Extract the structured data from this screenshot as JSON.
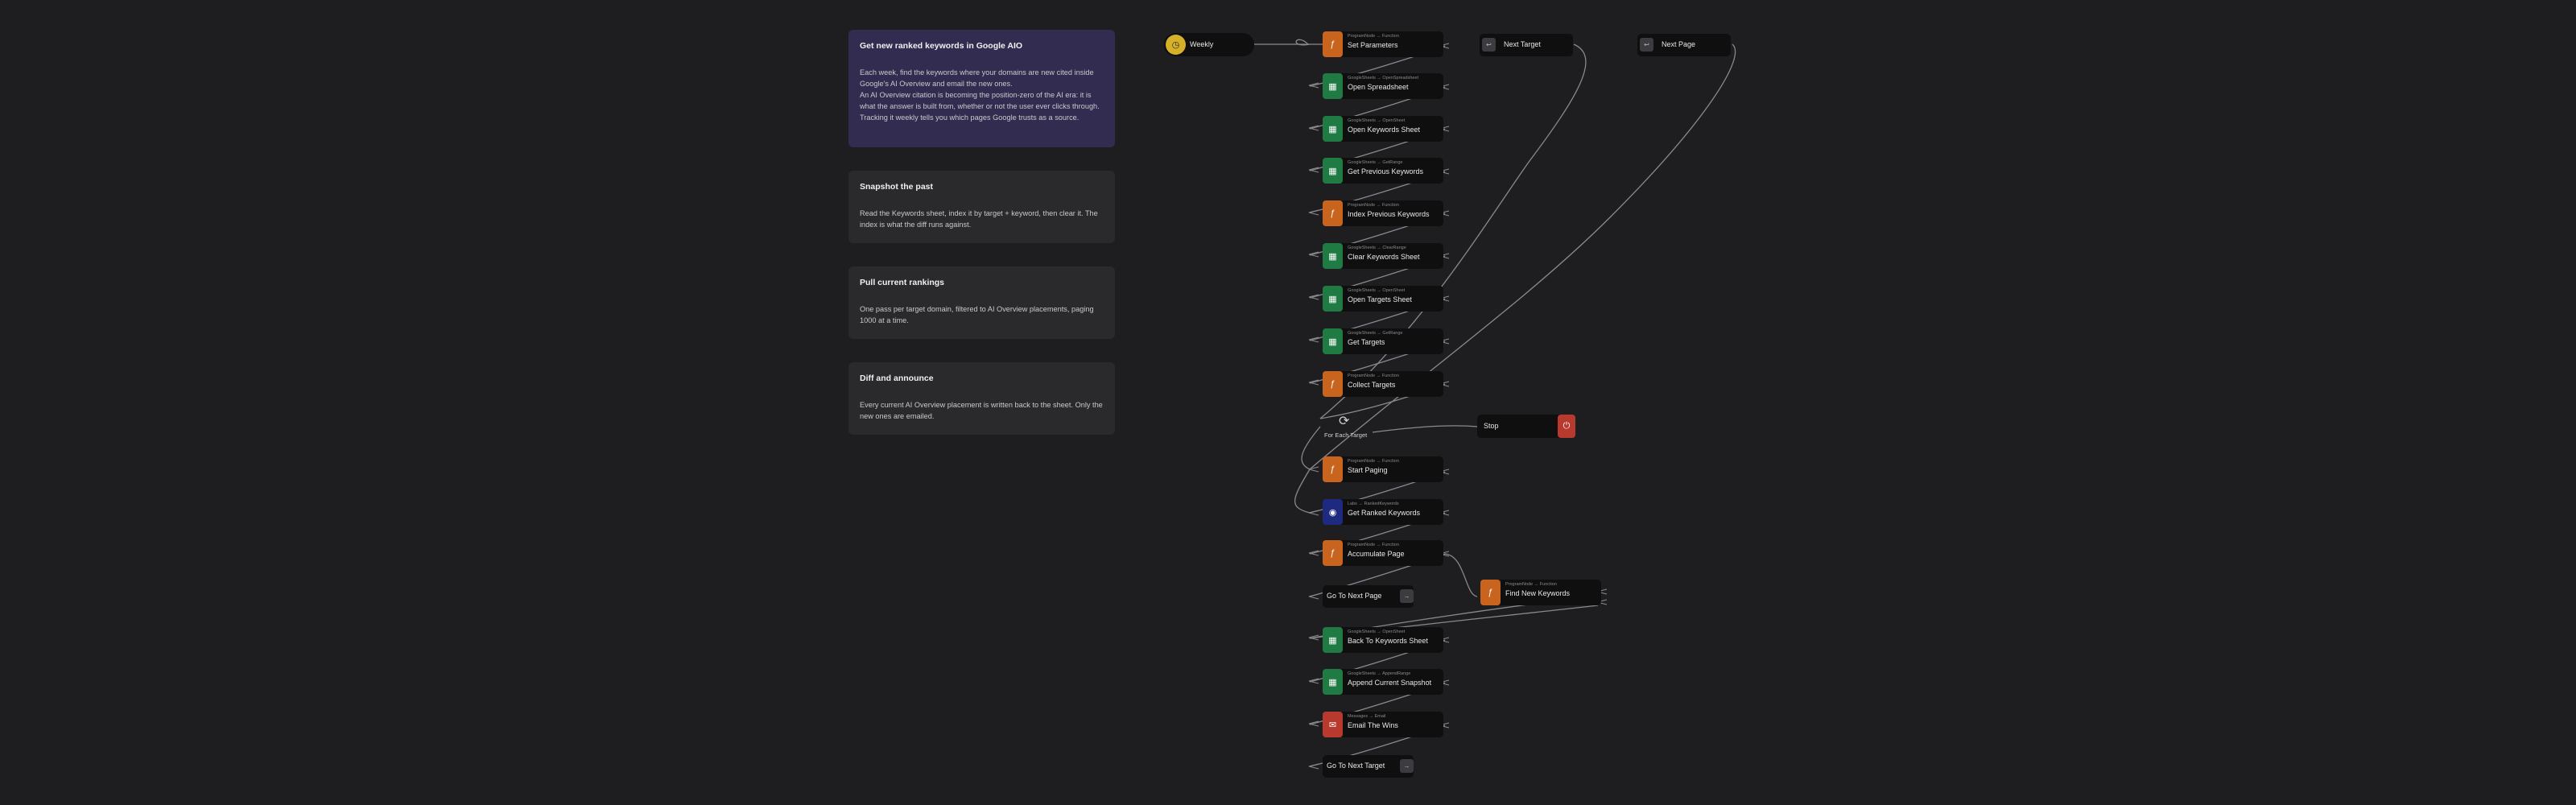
{
  "notes": [
    {
      "title": "Get new ranked keywords in Google AIO",
      "body": "Each week, find the keywords where your domains are new cited inside Google's AI Overview and email the new ones.\nAn AI Overview citation is becoming the position-zero of the AI era: it is what the answer is built from, whether or not the user ever clicks through. Tracking it weekly tells you which pages Google trusts as a source."
    },
    {
      "title": "Snapshot the past",
      "body": "Read the Keywords sheet, index it by target + keyword, then clear it. The index is what the diff runs against."
    },
    {
      "title": "Pull current rankings",
      "body": "One pass per target domain, filtered to AI Overview placements, paging 1000 at a time."
    },
    {
      "title": "Diff and announce",
      "body": "Every current AI Overview placement is written back to the sheet. Only the new ones are emailed."
    }
  ],
  "nodes": {
    "weekly": {
      "title": "Weekly",
      "icon": "clock-icon"
    },
    "set_parameters": {
      "sub": "ProgramNode → Function",
      "title": "Set Parameters",
      "icon": "code-icon"
    },
    "open_spreadsheet": {
      "sub": "GoogleSheets → OpenSpreadsheet",
      "title": "Open Spreadsheet",
      "icon": "sheet-icon"
    },
    "open_keywords_sheet": {
      "sub": "GoogleSheets → OpenSheet",
      "title": "Open Keywords Sheet",
      "icon": "sheet-icon"
    },
    "get_previous_keywords": {
      "sub": "GoogleSheets → GetRange",
      "title": "Get Previous Keywords",
      "icon": "sheet-icon"
    },
    "index_previous_keywords": {
      "sub": "ProgramNode → Function",
      "title": "Index Previous Keywords",
      "icon": "code-icon"
    },
    "clear_keywords_sheet": {
      "sub": "GoogleSheets → ClearRange",
      "title": "Clear Keywords Sheet",
      "icon": "sheet-icon"
    },
    "open_targets_sheet": {
      "sub": "GoogleSheets → OpenSheet",
      "title": "Open Targets Sheet",
      "icon": "sheet-icon"
    },
    "get_targets": {
      "sub": "GoogleSheets → GetRange",
      "title": "Get Targets",
      "icon": "sheet-icon"
    },
    "collect_targets": {
      "sub": "ProgramNode → Function",
      "title": "Collect Targets",
      "icon": "code-icon"
    },
    "for_each_target": {
      "title": "For Each Target",
      "icon": "loop-icon"
    },
    "stop": {
      "title": "Stop",
      "icon": "stop-icon"
    },
    "start_paging": {
      "sub": "ProgramNode → Function",
      "title": "Start Paging",
      "icon": "code-icon"
    },
    "get_ranked_keywords": {
      "sub": "Labs → RankedKeywords",
      "title": "Get Ranked Keywords",
      "icon": "globe-icon"
    },
    "accumulate_page": {
      "sub": "ProgramNode → Function",
      "title": "Accumulate Page",
      "icon": "code-icon"
    },
    "go_to_next_page": {
      "title": "Go To Next Page",
      "icon": "arrow-icon"
    },
    "find_new_keywords": {
      "sub": "ProgramNode → Function",
      "title": "Find New Keywords",
      "icon": "code-icon"
    },
    "back_to_keywords_sheet": {
      "sub": "GoogleSheets → OpenSheet",
      "title": "Back To Keywords Sheet",
      "icon": "sheet-icon"
    },
    "append_current_snapshot": {
      "sub": "GoogleSheets → AppendRange",
      "title": "Append Current Snapshot",
      "icon": "sheet-icon"
    },
    "email_the_wins": {
      "sub": "Messages → Email",
      "title": "Email The Wins",
      "icon": "mail-icon"
    },
    "go_to_next_target": {
      "title": "Go To Next Target",
      "icon": "arrow-icon"
    },
    "next_target": {
      "title": "Next Target",
      "icon": "arrow-icon"
    },
    "next_page": {
      "title": "Next Page",
      "icon": "arrow-icon"
    }
  }
}
